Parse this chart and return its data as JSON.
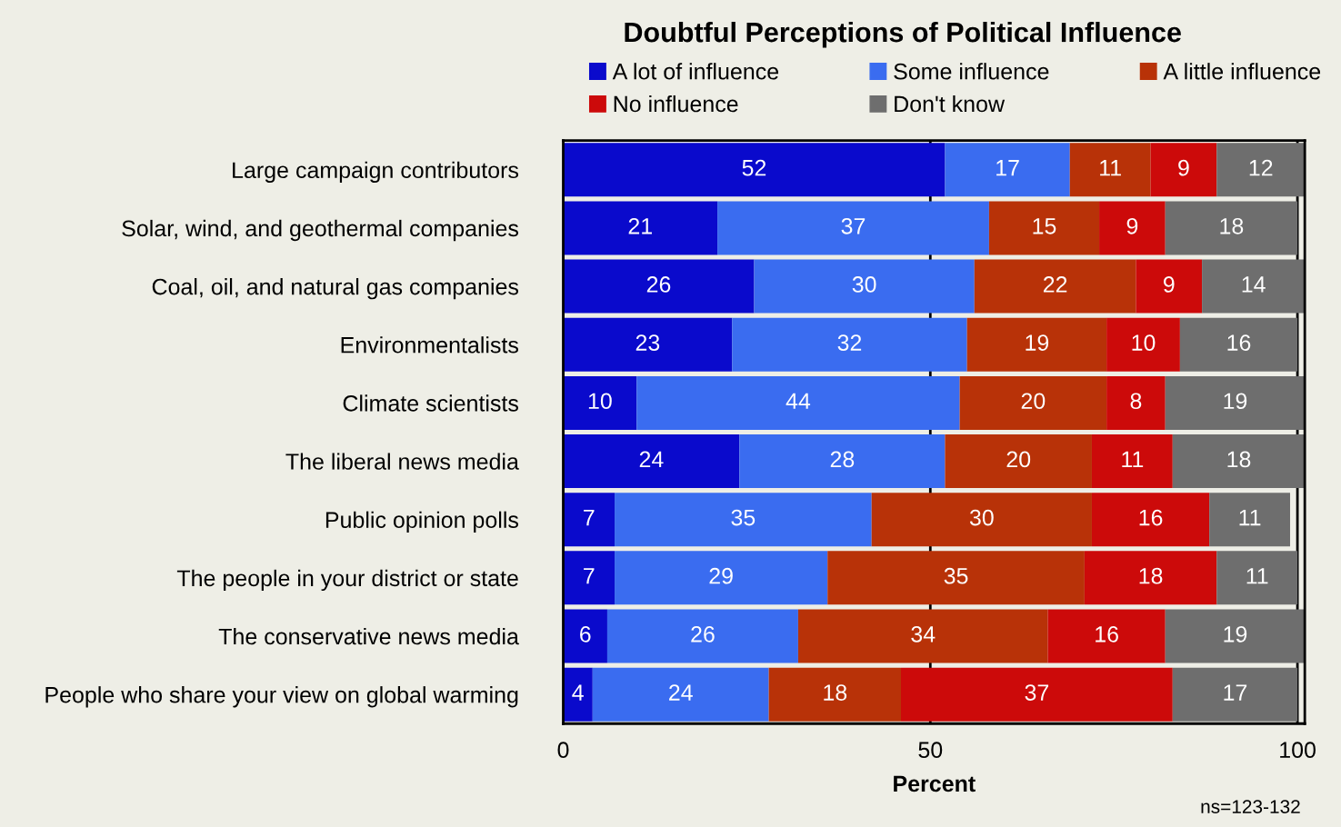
{
  "chart_data": {
    "type": "bar",
    "orientation": "horizontal",
    "stacked": true,
    "title": "Doubtful Perceptions of Political Influence",
    "xlabel": "Percent",
    "categories": [
      "Large campaign contributors",
      "Solar, wind, and geothermal companies",
      "Coal, oil, and natural gas companies",
      "Environmentalists",
      "Climate scientists",
      "The liberal news media",
      "Public opinion polls",
      "The people in your district or state",
      "The conservative news media",
      "People who share your view on global warming"
    ],
    "series": [
      {
        "name": "A lot of influence",
        "color": "#0a0acc",
        "values": [
          52,
          21,
          26,
          23,
          10,
          24,
          7,
          7,
          6,
          4
        ]
      },
      {
        "name": "Some influence",
        "color": "#3a6cf0",
        "values": [
          17,
          37,
          30,
          32,
          44,
          28,
          35,
          29,
          26,
          24
        ]
      },
      {
        "name": "A little influence",
        "color": "#b83208",
        "values": [
          11,
          15,
          22,
          19,
          20,
          20,
          30,
          35,
          34,
          18
        ]
      },
      {
        "name": "No influence",
        "color": "#cc0a0a",
        "values": [
          9,
          9,
          9,
          10,
          8,
          11,
          16,
          18,
          16,
          37
        ]
      },
      {
        "name": "Don't know",
        "color": "#6e6e6e",
        "values": [
          12,
          18,
          14,
          16,
          19,
          18,
          11,
          11,
          19,
          17
        ]
      }
    ],
    "xlim": [
      0,
      101
    ],
    "xticks": [
      0,
      50,
      100
    ],
    "grid": "x",
    "legend": "top",
    "data_labels": true,
    "annotations": [
      "ns=123-132"
    ]
  }
}
